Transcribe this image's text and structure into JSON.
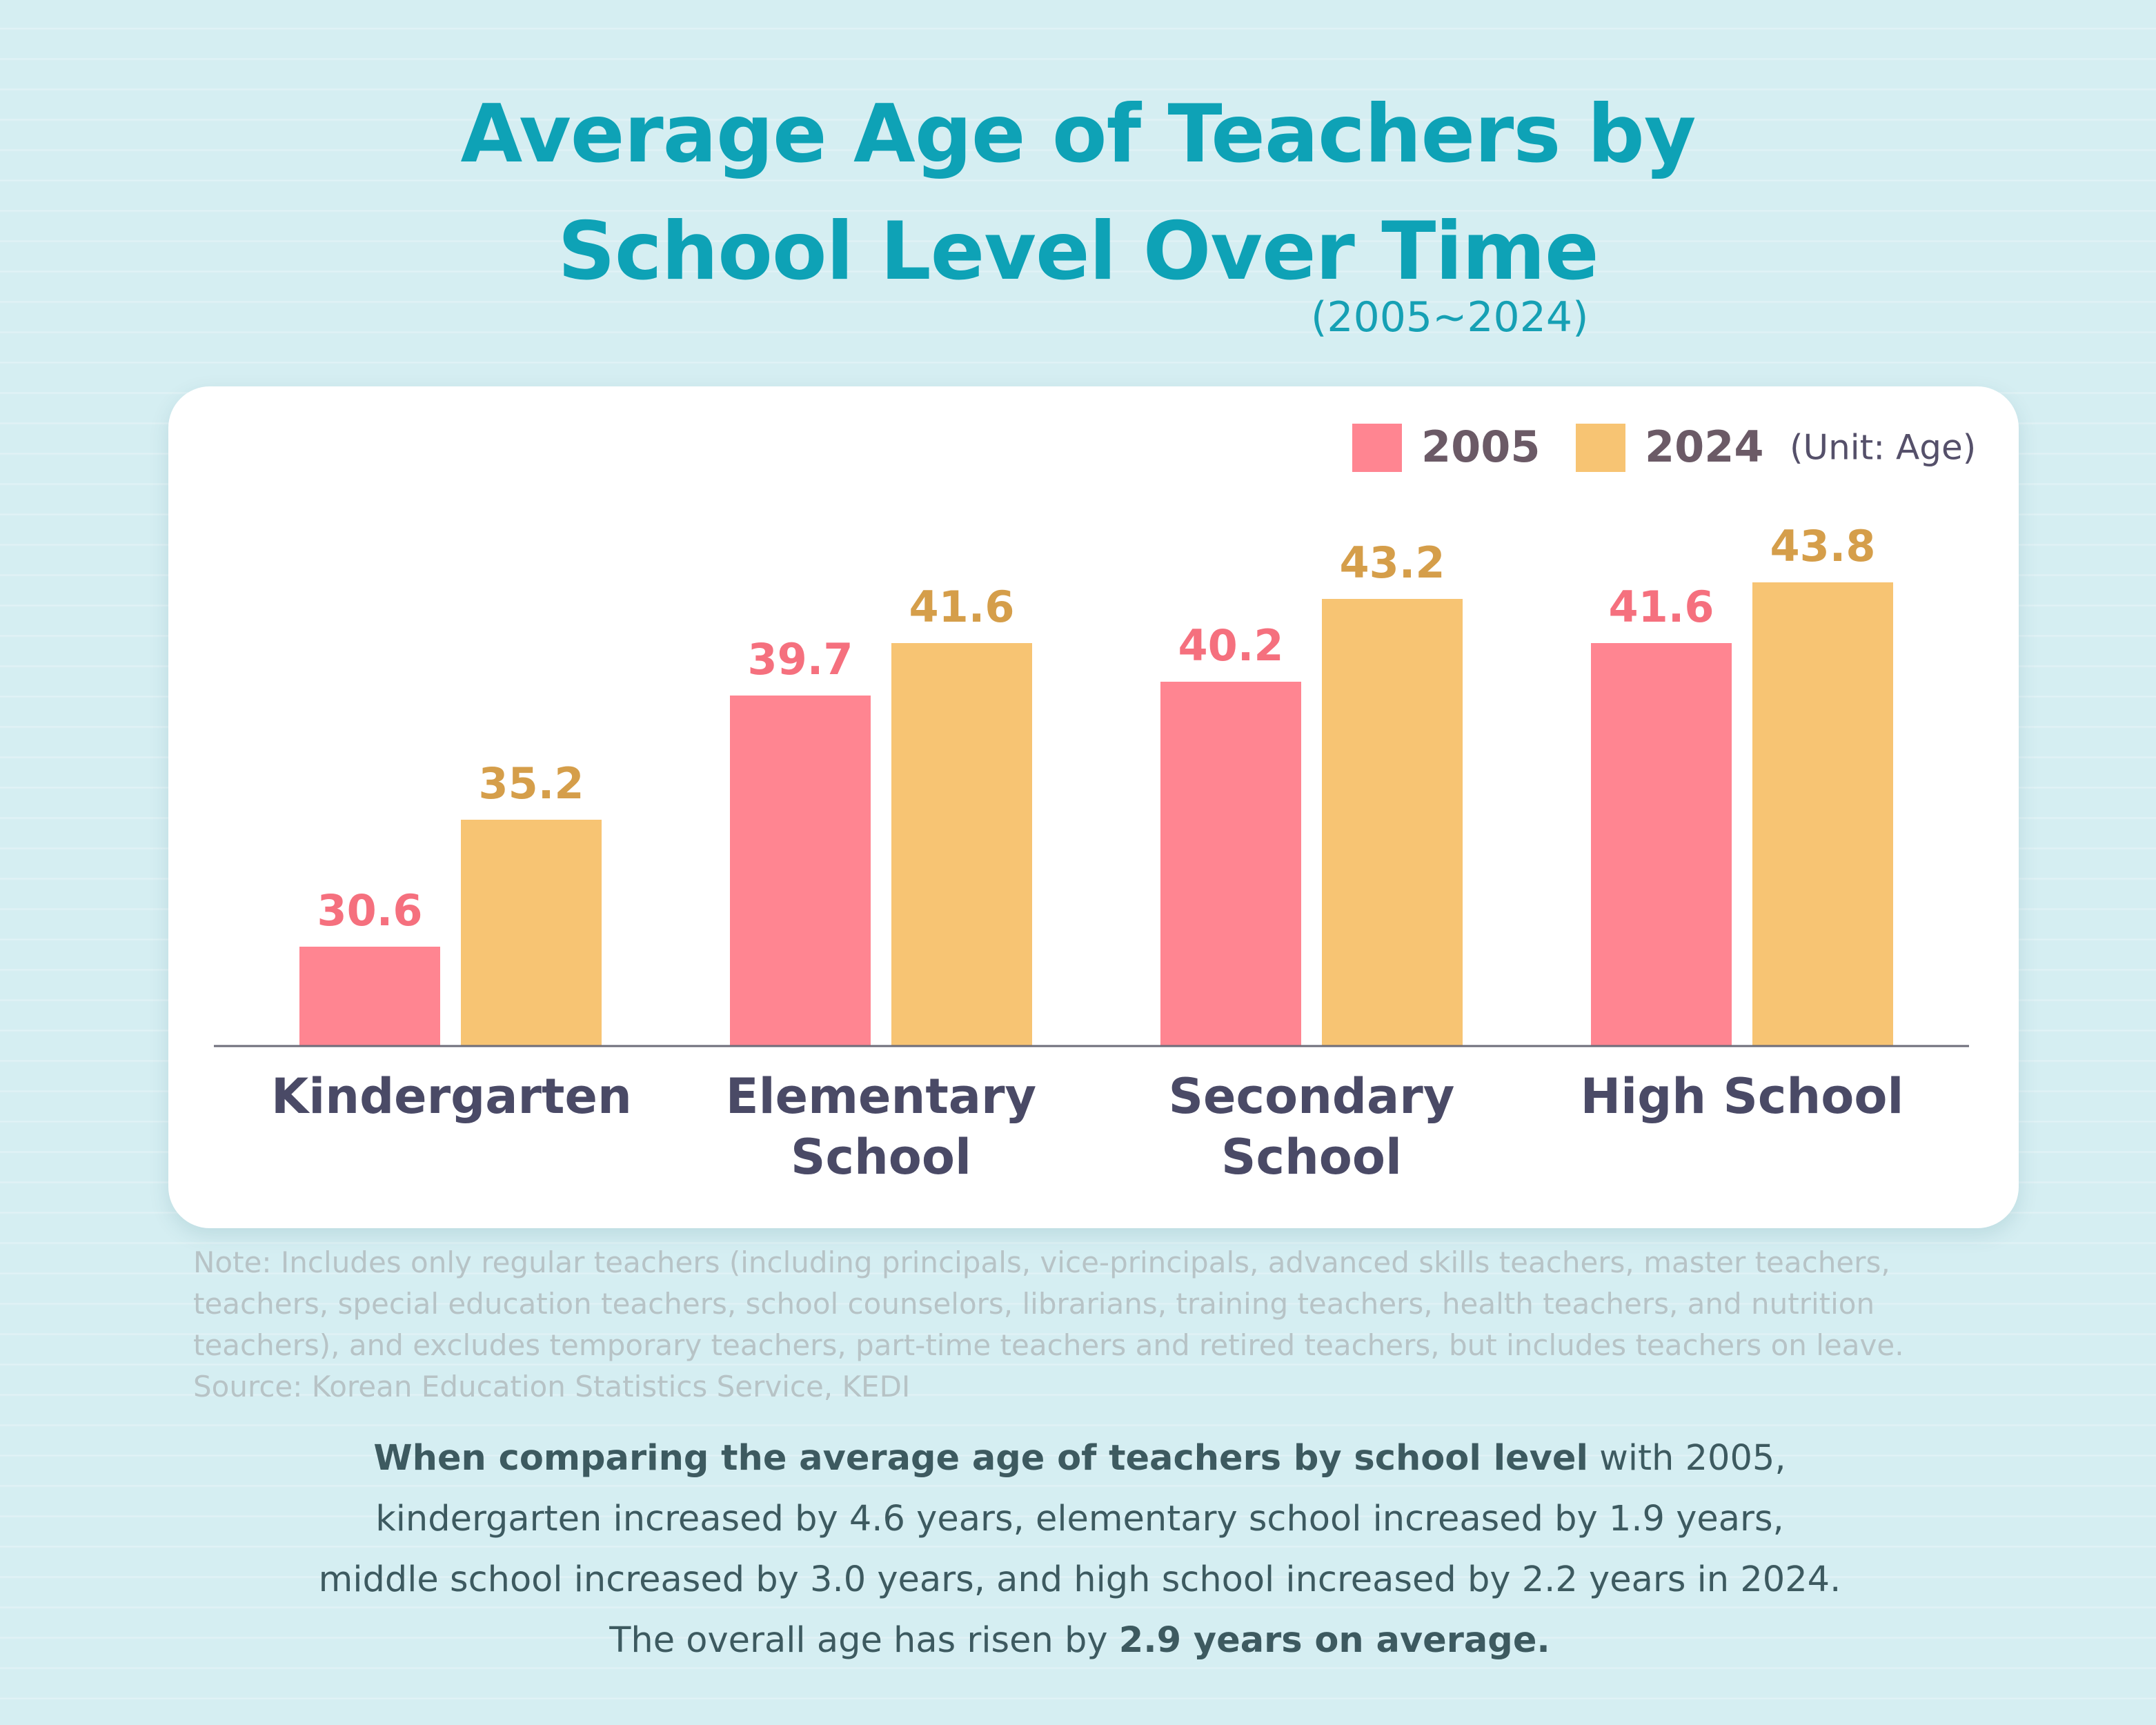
{
  "chart_data": {
    "type": "bar",
    "title": "Average Age of Teachers by School Level Over Time",
    "subtitle": "(2005~2024)",
    "unit_label": "(Unit: Age)",
    "categories": [
      "Kindergarten",
      "Elementary School",
      "Secondary School",
      "High School"
    ],
    "series": [
      {
        "name": "2005",
        "color": "#ff8591",
        "label_color": "#f5707e",
        "values": [
          30.6,
          39.7,
          40.2,
          41.6
        ]
      },
      {
        "name": "2024",
        "color": "#f7c473",
        "label_color": "#d59e4a",
        "values": [
          35.2,
          41.6,
          43.2,
          43.8
        ]
      }
    ],
    "ylim": [
      27,
      46
    ]
  },
  "note": "Note: Includes only regular teachers (including principals, vice-principals, advanced skills teachers, master teachers, teachers, special education teachers, school counselors, librarians, training teachers, health teachers, and nutrition teachers), and excludes temporary teachers, part-time teachers and retired teachers, but includes teachers on leave.",
  "source": "Source: Korean Education Statistics Service, KEDI",
  "summary": [
    {
      "text": "When comparing the average age of teachers by school level",
      "bold": true
    },
    {
      "text": " with 2005, kindergarten increased by 4.6 years, elementary school increased by 1.9 years, middle school increased by 3.0 years, and high school increased by 2.2 years in 2024. The overall age has risen by ",
      "bold": false
    },
    {
      "text": "2.9 years on average.",
      "bold": true
    }
  ]
}
